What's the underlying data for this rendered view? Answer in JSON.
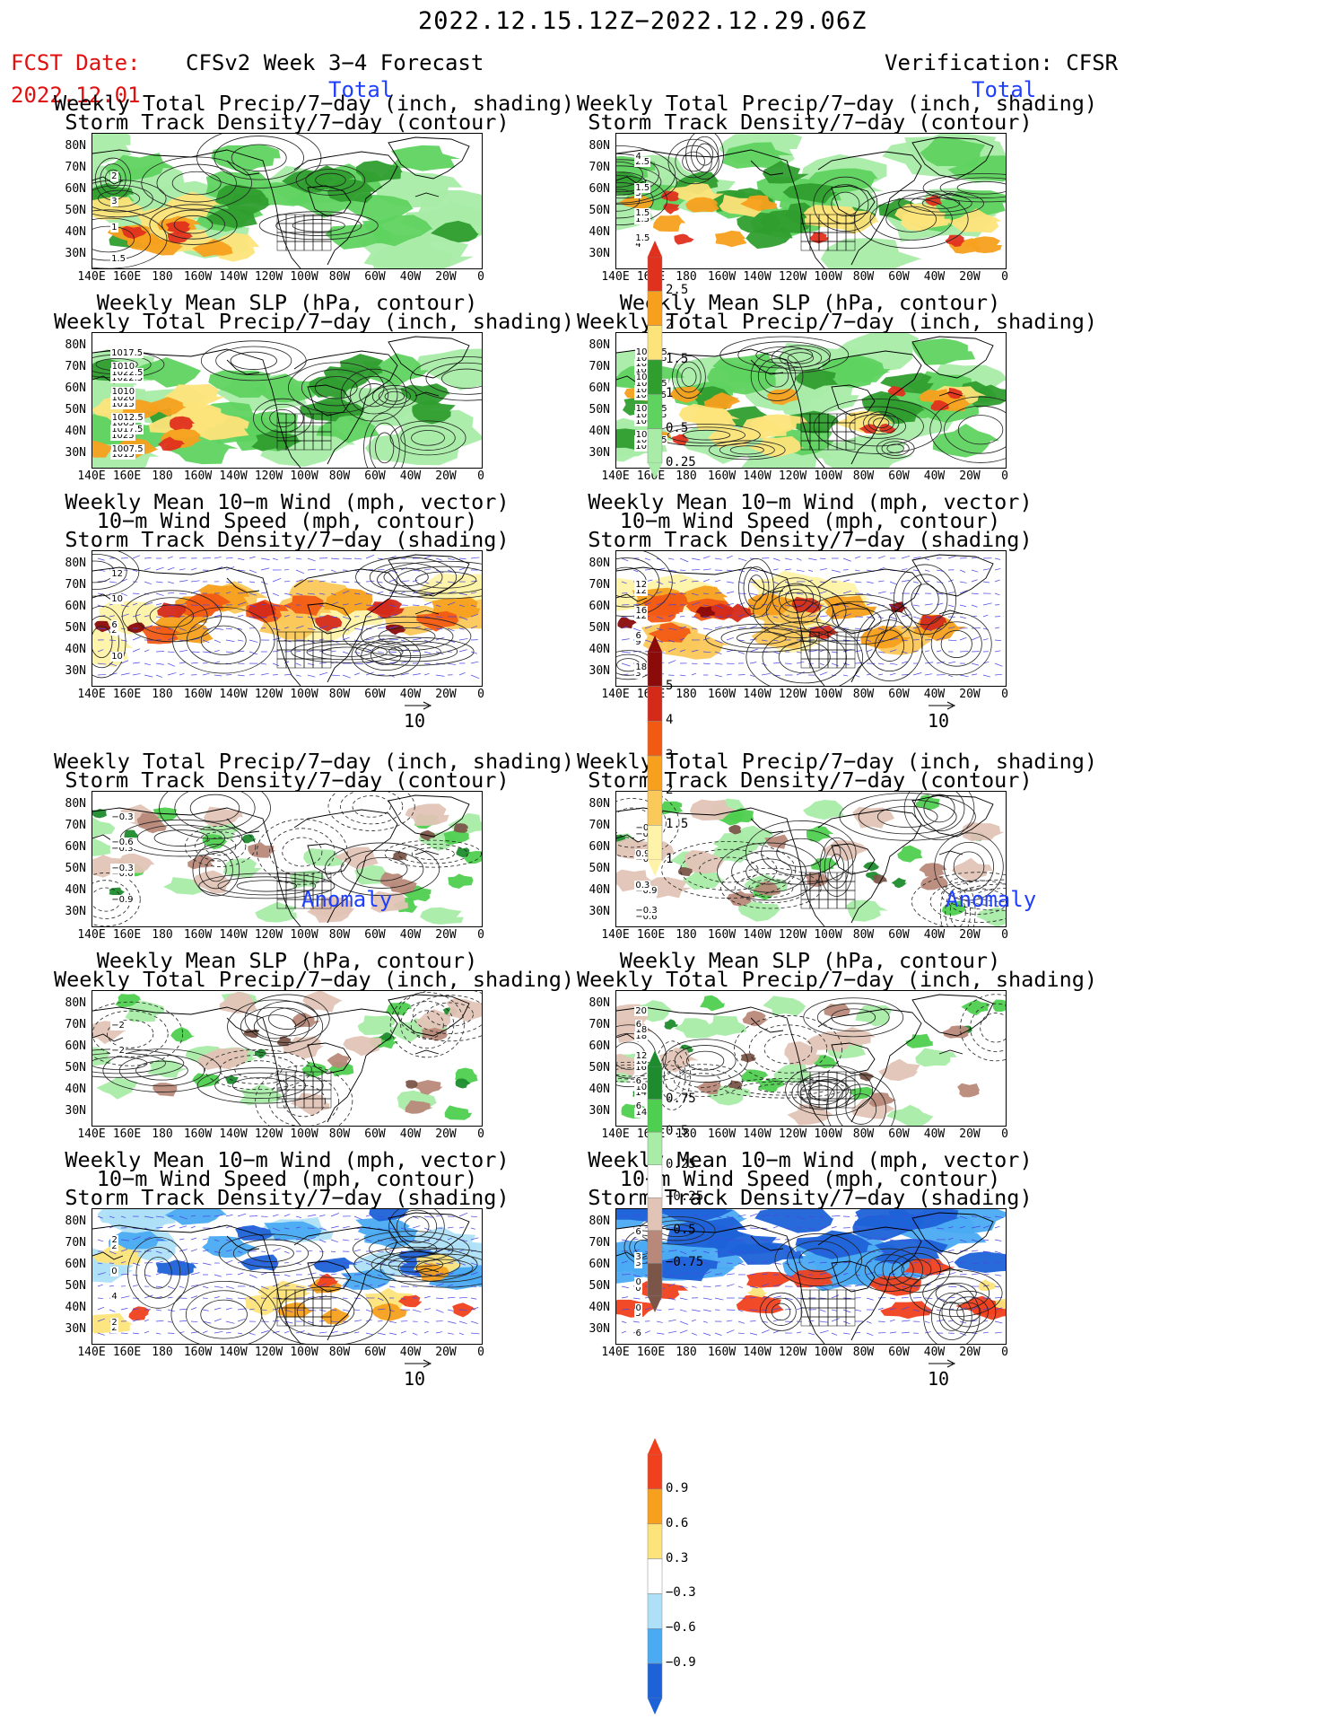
{
  "header": {
    "time_range": "2022.12.15.12Z−2022.12.29.06Z",
    "fcst_label": "FCST Date:",
    "fcst_date": "2022.12.01",
    "left_title": "CFSv2 Week 3−4 Forecast",
    "right_title": "Verification: CFSR"
  },
  "sections": {
    "total": "Total",
    "anomaly": "Anomaly"
  },
  "panel_titles": {
    "precip_storm": [
      "Weekly Total Precip/7−day (inch, shading)",
      "Storm Track Density/7−day (contour)"
    ],
    "slp_precip": [
      "Weekly Mean SLP (hPa, contour)",
      "Weekly Total Precip/7−day (inch, shading)"
    ],
    "wind_storm": [
      "Weekly Mean 10−m Wind (mph, vector)",
      "10−m Wind Speed (mph, contour)",
      "Storm Track Density/7−day (shading)"
    ]
  },
  "axes": {
    "lat_labels": [
      "80N",
      "70N",
      "60N",
      "50N",
      "40N",
      "30N"
    ],
    "lon_labels": [
      "140E",
      "160E",
      "180",
      "160W",
      "140W",
      "120W",
      "100W",
      "80W",
      "60W",
      "40W",
      "20W",
      "0"
    ]
  },
  "vector_scale": "10",
  "colorbars": {
    "precip_total": {
      "ticks": [
        "2.5",
        "2",
        "1.5",
        "1",
        "0.5",
        "0.25"
      ],
      "colors": [
        "#e0301e",
        "#f7a01e",
        "#fde47a",
        "#2f9e2f",
        "#5fd35f",
        "#a8eca8"
      ]
    },
    "storm_total": {
      "ticks": [
        "5",
        "4",
        "3",
        "2",
        "1.5",
        "1"
      ],
      "colors": [
        "#8b0a0a",
        "#d42a1a",
        "#f25a14",
        "#f7a01e",
        "#fbc85a",
        "#fef3a8"
      ]
    },
    "precip_anom": {
      "ticks": [
        "0.75",
        "0.5",
        "0.25",
        "−0.25",
        "−0.5",
        "−0.75"
      ],
      "colors": [
        "#1e8c2e",
        "#4fcf4f",
        "#a8eca8",
        "#ffffff",
        "#e2c4b6",
        "#b8897a",
        "#7a5548"
      ]
    },
    "storm_anom": {
      "ticks": [
        "0.9",
        "0.6",
        "0.3",
        "−0.3",
        "−0.6",
        "−0.9"
      ],
      "colors": [
        "#f0401e",
        "#f7a01e",
        "#fde47a",
        "#ffffff",
        "#aee0f8",
        "#4aaaf2",
        "#1e62d8"
      ]
    }
  },
  "contour_labels": {
    "f_total_precip": [
      "1.5",
      "2",
      "3",
      "1"
    ],
    "v_total_precip": [
      "3",
      "1.5",
      "4",
      "2.5",
      "1.5",
      "1.5",
      "1.5",
      "4"
    ],
    "f_total_slp": [
      "1025",
      "1017.5",
      "1022.5",
      "1015",
      "1017.5",
      "1015",
      "1022.5",
      "1020",
      "1005",
      "1007.5",
      "1010",
      "1010",
      "1012.5"
    ],
    "v_total_slp": [
      "1025",
      "1007.5",
      "1005",
      "1030",
      "1035",
      "1025",
      "1017.5",
      "1027.5",
      "1032.5",
      "1027.5",
      "1002.5",
      "1010",
      "1022.5",
      "1020"
    ],
    "f_total_wind": [
      "2",
      "10",
      "12",
      "10",
      "6"
    ],
    "v_total_wind": [
      "3",
      "12",
      "12",
      "9",
      "18",
      "12",
      "16",
      "6"
    ],
    "f_anom_precip": [
      "−0.3",
      "−0.6",
      "−0.9",
      "−0.3",
      "−0.6",
      "−0.3"
    ],
    "v_anom_precip": [
      "−0.9",
      "−0.6",
      "−0.9",
      "−0.3",
      "0.3",
      "−0.3",
      "−0.9",
      "0.9"
    ],
    "f_anom_slp": [
      "−2",
      "−2"
    ],
    "v_anom_slp": [
      "16",
      "14",
      "20",
      "18",
      "16",
      "10",
      "14",
      "18",
      "12",
      "6",
      "6",
      "6"
    ],
    "f_anom_wind": [
      "2",
      "2",
      "0",
      "4",
      "2",
      "2"
    ],
    "v_anom_wind": [
      "3",
      "0",
      "3",
      "6",
      "3",
      "0",
      "0",
      "6"
    ]
  }
}
